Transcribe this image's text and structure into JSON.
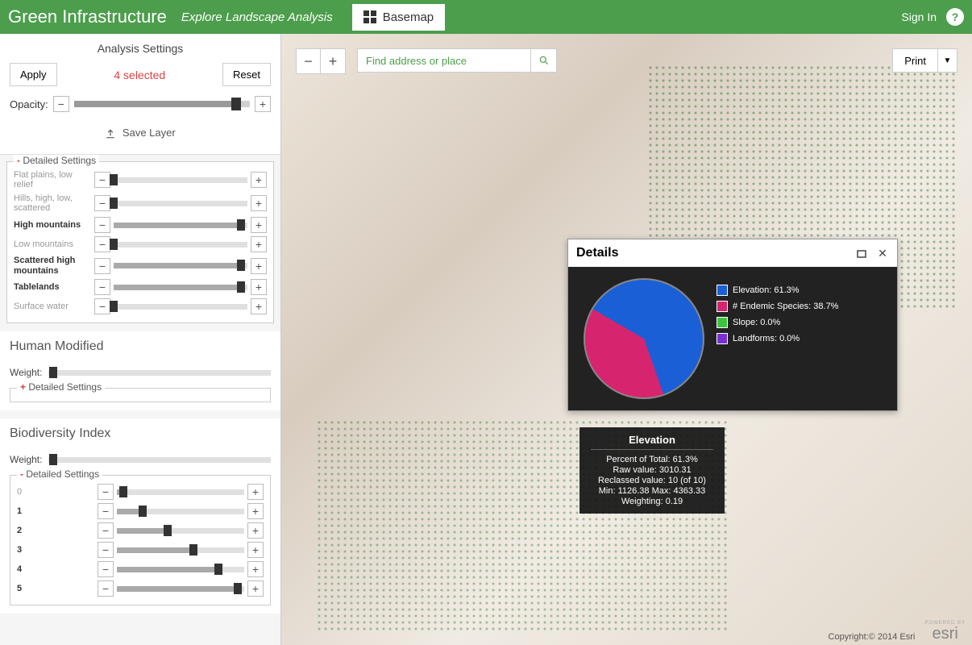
{
  "header": {
    "title": "Green Infrastructure",
    "subtitle": "Explore Landscape Analysis",
    "basemap": "Basemap",
    "signin": "Sign In",
    "help": "?"
  },
  "settings": {
    "title": "Analysis Settings",
    "apply": "Apply",
    "selected": "4 selected",
    "reset": "Reset",
    "opacity_label": "Opacity:",
    "opacity_pct": 92,
    "save_layer": "Save Layer",
    "detailed_label": "Detailed Settings",
    "items": [
      {
        "label": "Flat plains, low relief",
        "active": false,
        "pct": 0
      },
      {
        "label": "Hills, high, low, scattered",
        "active": false,
        "pct": 0
      },
      {
        "label": "High mountains",
        "active": true,
        "pct": 95
      },
      {
        "label": "Low mountains",
        "active": false,
        "pct": 0
      },
      {
        "label": "Scattered high mountains",
        "active": true,
        "pct": 95
      },
      {
        "label": "Tablelands",
        "active": true,
        "pct": 95
      },
      {
        "label": "Surface water",
        "active": false,
        "pct": 0
      }
    ]
  },
  "human_modified": {
    "title": "Human Modified",
    "weight_label": "Weight:",
    "weight_pct": 2,
    "detailed_label": "Detailed Settings"
  },
  "biodiversity": {
    "title": "Biodiversity Index",
    "weight_label": "Weight:",
    "weight_pct": 2,
    "detailed_label": "Detailed Settings",
    "items": [
      {
        "label": "0",
        "active": false,
        "pct": 5
      },
      {
        "label": "1",
        "active": true,
        "pct": 20
      },
      {
        "label": "2",
        "active": true,
        "pct": 40
      },
      {
        "label": "3",
        "active": true,
        "pct": 60
      },
      {
        "label": "4",
        "active": true,
        "pct": 80
      },
      {
        "label": "5",
        "active": true,
        "pct": 95
      }
    ]
  },
  "map": {
    "search_placeholder": "Find address or place",
    "print": "Print",
    "attribution": "Copyright:© 2014 Esri",
    "esri": "esri",
    "powered": "POWERED BY"
  },
  "details": {
    "title": "Details",
    "pie": {
      "slices": [
        {
          "label": "Elevation",
          "pct": 61.3,
          "color": "#1a5fd6"
        },
        {
          "label": "# Endemic Species",
          "pct": 38.7,
          "color": "#d6246f"
        },
        {
          "label": "Slope",
          "pct": 0.0,
          "color": "#3fc43f"
        },
        {
          "label": "Landforms",
          "pct": 0.0,
          "color": "#7a2fd6"
        }
      ]
    },
    "legend": [
      "Elevation: 61.3%",
      "# Endemic Species: 38.7%",
      "Slope: 0.0%",
      "Landforms: 0.0%"
    ],
    "tooltip": {
      "title": "Elevation",
      "lines": [
        "Percent of Total: 61.3%",
        "Raw value: 3010.31",
        "Reclassed value: 10 (of 10)",
        "Min: 1126.38 Max: 4363.33",
        "Weighting: 0.19"
      ]
    }
  }
}
